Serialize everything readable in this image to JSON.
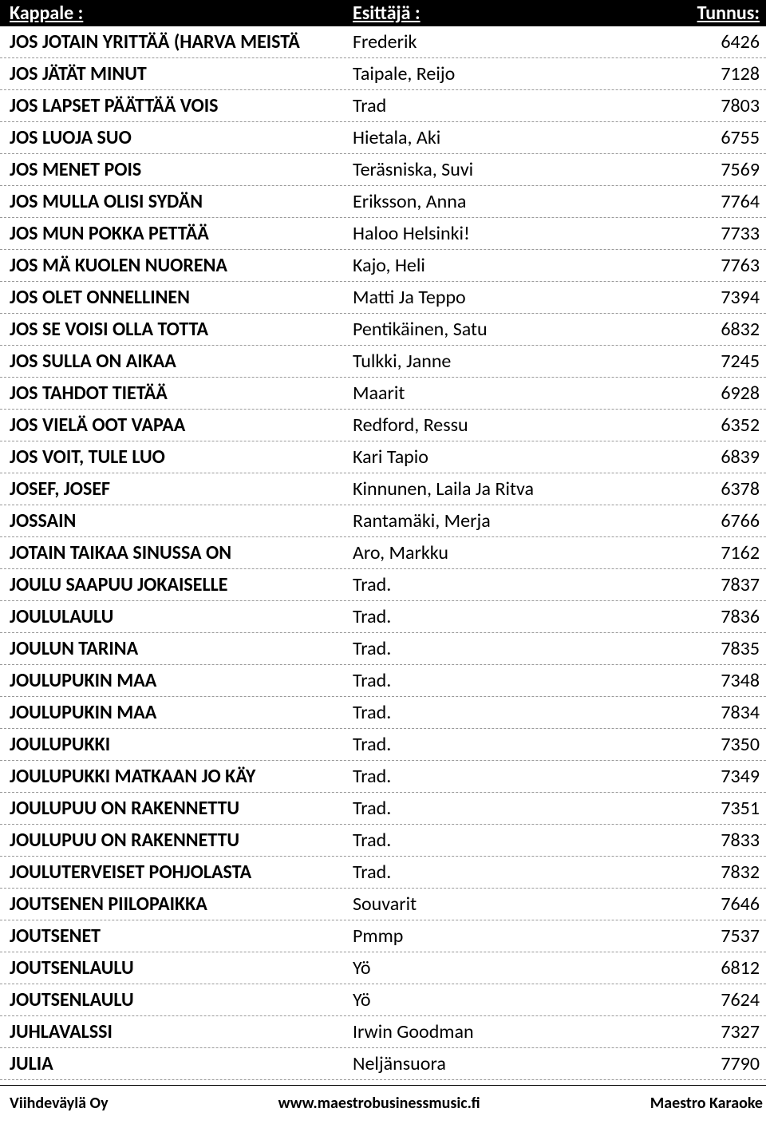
{
  "header": {
    "kappale": "Kappale :",
    "esittaja": "Esittäjä :",
    "tunnus": "Tunnus:"
  },
  "rows": [
    {
      "kappale": "JOS JOTAIN YRITTÄÄ (HARVA MEISTÄ",
      "esittaja": "Frederik",
      "tunnus": "6426"
    },
    {
      "kappale": "JOS JÄTÄT MINUT",
      "esittaja": "Taipale, Reijo",
      "tunnus": "7128"
    },
    {
      "kappale": "JOS LAPSET PÄÄTTÄÄ VOIS",
      "esittaja": "Trad",
      "tunnus": "7803"
    },
    {
      "kappale": "JOS LUOJA SUO",
      "esittaja": "Hietala, Aki",
      "tunnus": "6755"
    },
    {
      "kappale": "JOS MENET POIS",
      "esittaja": "Teräsniska, Suvi",
      "tunnus": "7569"
    },
    {
      "kappale": "JOS MULLA OLISI SYDÄN",
      "esittaja": "Eriksson, Anna",
      "tunnus": "7764"
    },
    {
      "kappale": "JOS MUN POKKA PETTÄÄ",
      "esittaja": "Haloo Helsinki!",
      "tunnus": "7733"
    },
    {
      "kappale": "JOS MÄ KUOLEN NUORENA",
      "esittaja": "Kajo, Heli",
      "tunnus": "7763"
    },
    {
      "kappale": "JOS OLET ONNELLINEN",
      "esittaja": "Matti Ja Teppo",
      "tunnus": "7394"
    },
    {
      "kappale": "JOS SE VOISI OLLA TOTTA",
      "esittaja": "Pentikäinen, Satu",
      "tunnus": "6832"
    },
    {
      "kappale": "JOS SULLA ON AIKAA",
      "esittaja": "Tulkki, Janne",
      "tunnus": "7245"
    },
    {
      "kappale": "JOS TAHDOT TIETÄÄ",
      "esittaja": "Maarit",
      "tunnus": "6928"
    },
    {
      "kappale": "JOS VIELÄ OOT VAPAA",
      "esittaja": "Redford, Ressu",
      "tunnus": "6352"
    },
    {
      "kappale": "JOS VOIT, TULE LUO",
      "esittaja": "Kari Tapio",
      "tunnus": "6839"
    },
    {
      "kappale": "JOSEF, JOSEF",
      "esittaja": "Kinnunen, Laila Ja Ritva",
      "tunnus": "6378"
    },
    {
      "kappale": "JOSSAIN",
      "esittaja": "Rantamäki, Merja",
      "tunnus": "6766"
    },
    {
      "kappale": "JOTAIN TAIKAA SINUSSA ON",
      "esittaja": "Aro, Markku",
      "tunnus": "7162"
    },
    {
      "kappale": "JOULU SAAPUU JOKAISELLE",
      "esittaja": "Trad.",
      "tunnus": "7837"
    },
    {
      "kappale": "JOULULAULU",
      "esittaja": "Trad.",
      "tunnus": "7836"
    },
    {
      "kappale": "JOULUN TARINA",
      "esittaja": "Trad.",
      "tunnus": "7835"
    },
    {
      "kappale": "JOULUPUKIN MAA",
      "esittaja": "Trad.",
      "tunnus": "7348"
    },
    {
      "kappale": "JOULUPUKIN MAA",
      "esittaja": "Trad.",
      "tunnus": "7834"
    },
    {
      "kappale": "JOULUPUKKI",
      "esittaja": "Trad.",
      "tunnus": "7350"
    },
    {
      "kappale": "JOULUPUKKI MATKAAN JO KÄY",
      "esittaja": "Trad.",
      "tunnus": "7349"
    },
    {
      "kappale": "JOULUPUU ON RAKENNETTU",
      "esittaja": "Trad.",
      "tunnus": "7351"
    },
    {
      "kappale": "JOULUPUU ON RAKENNETTU",
      "esittaja": "Trad.",
      "tunnus": "7833"
    },
    {
      "kappale": "JOULUTERVEISET POHJOLASTA",
      "esittaja": "Trad.",
      "tunnus": "7832"
    },
    {
      "kappale": "JOUTSENEN PIILOPAIKKA",
      "esittaja": "Souvarit",
      "tunnus": "7646"
    },
    {
      "kappale": "JOUTSENET",
      "esittaja": "Pmmp",
      "tunnus": "7537"
    },
    {
      "kappale": "JOUTSENLAULU",
      "esittaja": "Yö",
      "tunnus": "6812"
    },
    {
      "kappale": "JOUTSENLAULU",
      "esittaja": "Yö",
      "tunnus": "7624"
    },
    {
      "kappale": "JUHLAVALSSI",
      "esittaja": "Irwin Goodman",
      "tunnus": "7327"
    },
    {
      "kappale": "JULIA",
      "esittaja": "Neljänsuora",
      "tunnus": "7790"
    }
  ],
  "footer": {
    "left": "Viihdeväylä Oy",
    "center": "www.maestrobusinessmusic.fi",
    "right": "Maestro Karaoke"
  }
}
